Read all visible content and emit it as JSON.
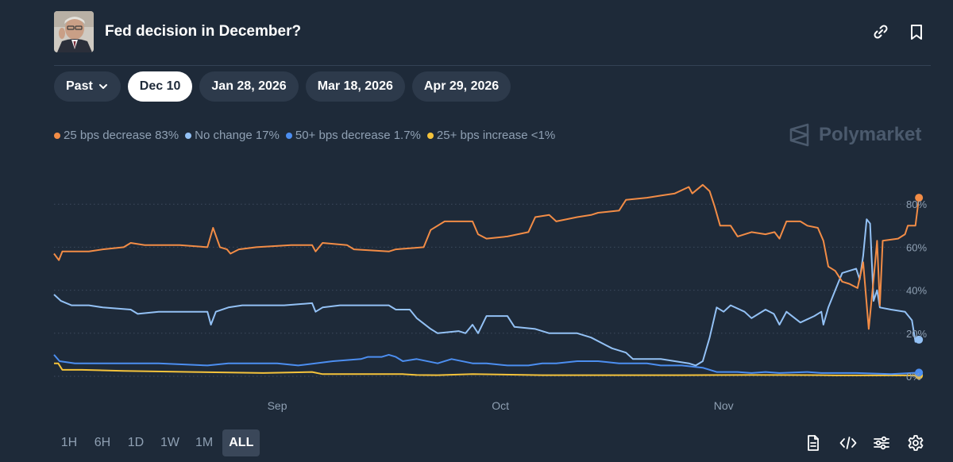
{
  "header": {
    "title": "Fed decision in December?"
  },
  "date_pills": [
    {
      "label": "Past",
      "active": false,
      "dropdown": true
    },
    {
      "label": "Dec 10",
      "active": true
    },
    {
      "label": "Jan 28, 2026",
      "active": false
    },
    {
      "label": "Mar 18, 2026",
      "active": false
    },
    {
      "label": "Apr 29, 2026",
      "active": false
    }
  ],
  "brand": "Polymarket",
  "time_ranges": [
    {
      "label": "1H",
      "active": false
    },
    {
      "label": "6H",
      "active": false
    },
    {
      "label": "1D",
      "active": false
    },
    {
      "label": "1W",
      "active": false
    },
    {
      "label": "1M",
      "active": false
    },
    {
      "label": "ALL",
      "active": true
    }
  ],
  "chart_data": {
    "type": "line",
    "title": "",
    "xlabel": "",
    "ylabel": "",
    "ylim": [
      0,
      100
    ],
    "xlim": [
      0,
      120
    ],
    "x_ticks": [
      {
        "label": "Sep",
        "x": 32
      },
      {
        "label": "Oct",
        "x": 64
      },
      {
        "label": "Nov",
        "x": 96
      }
    ],
    "y_ticks": [
      {
        "value": 0,
        "label": "0%"
      },
      {
        "value": 20,
        "label": "20%"
      },
      {
        "value": 40,
        "label": "40%"
      },
      {
        "value": 60,
        "label": "60%"
      },
      {
        "value": 80,
        "label": "80%"
      }
    ],
    "grid": true,
    "legend_position": "top-left",
    "series": [
      {
        "name": "25 bps decrease",
        "legend": "25 bps decrease 83%",
        "color": "#f28c46",
        "points": [
          [
            0,
            57
          ],
          [
            0.7,
            54
          ],
          [
            1.2,
            58
          ],
          [
            5,
            58
          ],
          [
            7,
            59
          ],
          [
            10,
            60
          ],
          [
            11,
            62
          ],
          [
            13,
            61
          ],
          [
            18,
            61
          ],
          [
            22,
            60
          ],
          [
            22.8,
            69
          ],
          [
            23.8,
            60
          ],
          [
            24.8,
            59
          ],
          [
            25.3,
            57
          ],
          [
            26.5,
            59
          ],
          [
            29,
            60
          ],
          [
            34,
            61
          ],
          [
            37,
            61
          ],
          [
            37.5,
            58
          ],
          [
            38.5,
            62
          ],
          [
            42,
            61
          ],
          [
            43,
            59
          ],
          [
            48,
            58
          ],
          [
            49,
            59
          ],
          [
            53,
            60
          ],
          [
            54,
            68
          ],
          [
            56,
            72
          ],
          [
            58,
            72
          ],
          [
            60,
            72
          ],
          [
            60.8,
            66
          ],
          [
            62,
            64
          ],
          [
            65,
            65
          ],
          [
            68,
            67
          ],
          [
            69,
            74
          ],
          [
            71,
            75
          ],
          [
            72,
            72
          ],
          [
            75,
            74
          ],
          [
            77,
            75
          ],
          [
            78,
            76
          ],
          [
            81,
            77
          ],
          [
            82,
            82
          ],
          [
            85,
            83
          ],
          [
            87,
            84
          ],
          [
            89,
            85
          ],
          [
            91,
            88
          ],
          [
            91.5,
            85
          ],
          [
            93,
            89
          ],
          [
            94,
            86
          ],
          [
            94.7,
            79
          ],
          [
            95.5,
            70
          ],
          [
            97,
            70
          ],
          [
            98,
            65
          ],
          [
            100,
            67
          ],
          [
            102,
            66
          ],
          [
            103.3,
            67
          ],
          [
            104,
            64
          ],
          [
            105,
            72
          ],
          [
            107,
            72
          ],
          [
            108,
            70
          ],
          [
            109.5,
            69
          ],
          [
            110.3,
            63
          ],
          [
            111,
            51
          ],
          [
            112,
            49
          ],
          [
            113,
            44
          ],
          [
            114,
            43
          ],
          [
            115.2,
            41
          ],
          [
            116,
            53
          ],
          [
            116.8,
            22
          ],
          [
            117.5,
            45
          ],
          [
            118,
            63
          ],
          [
            118.4,
            33
          ],
          [
            118.8,
            63
          ],
          [
            121,
            64
          ],
          [
            122,
            66
          ],
          [
            122.4,
            70
          ],
          [
            123.5,
            70
          ],
          [
            124,
            83
          ]
        ]
      },
      {
        "name": "No change",
        "legend": "No change 17%",
        "color": "#93c1f5",
        "points": [
          [
            0,
            38
          ],
          [
            1,
            35
          ],
          [
            2.5,
            33
          ],
          [
            5,
            33
          ],
          [
            7,
            32
          ],
          [
            11,
            31
          ],
          [
            12,
            29
          ],
          [
            15,
            30
          ],
          [
            22,
            30
          ],
          [
            22.5,
            24
          ],
          [
            23.2,
            30
          ],
          [
            25,
            32
          ],
          [
            27,
            33
          ],
          [
            33,
            33
          ],
          [
            37,
            34
          ],
          [
            37.5,
            30
          ],
          [
            38.5,
            32
          ],
          [
            41,
            33
          ],
          [
            48,
            33
          ],
          [
            49,
            31
          ],
          [
            51,
            31
          ],
          [
            52,
            27
          ],
          [
            54,
            22
          ],
          [
            55,
            20
          ],
          [
            58,
            21
          ],
          [
            59,
            20
          ],
          [
            60,
            24
          ],
          [
            60.8,
            20
          ],
          [
            62,
            28
          ],
          [
            65,
            28
          ],
          [
            66,
            23
          ],
          [
            69,
            22
          ],
          [
            71,
            20
          ],
          [
            75,
            20
          ],
          [
            77,
            18
          ],
          [
            80,
            13
          ],
          [
            82,
            11
          ],
          [
            83,
            8
          ],
          [
            85,
            8
          ],
          [
            87,
            8
          ],
          [
            89,
            7
          ],
          [
            91,
            6
          ],
          [
            92,
            5
          ],
          [
            93,
            7
          ],
          [
            94,
            18
          ],
          [
            95,
            32
          ],
          [
            96,
            30
          ],
          [
            97,
            33
          ],
          [
            99,
            30
          ],
          [
            100,
            27
          ],
          [
            101,
            29
          ],
          [
            102,
            31
          ],
          [
            103.2,
            29
          ],
          [
            104,
            24
          ],
          [
            105,
            30
          ],
          [
            107,
            25
          ],
          [
            109,
            28
          ],
          [
            110,
            30
          ],
          [
            110.3,
            24
          ],
          [
            111,
            32
          ],
          [
            112,
            40
          ],
          [
            113,
            48
          ],
          [
            114,
            49
          ],
          [
            115,
            50
          ],
          [
            115.5,
            45
          ],
          [
            116,
            56
          ],
          [
            116.5,
            73
          ],
          [
            117,
            71
          ],
          [
            117.5,
            35
          ],
          [
            118,
            40
          ],
          [
            118.4,
            32
          ],
          [
            120,
            31
          ],
          [
            122,
            30
          ],
          [
            123,
            26
          ],
          [
            123.5,
            16
          ],
          [
            124,
            17
          ]
        ]
      },
      {
        "name": "50+ bps decrease",
        "legend": "50+ bps decrease 1.7%",
        "color": "#4c8ef0",
        "points": [
          [
            0,
            10
          ],
          [
            0.8,
            7
          ],
          [
            3,
            6
          ],
          [
            10,
            6
          ],
          [
            15,
            6
          ],
          [
            22,
            5
          ],
          [
            25,
            6
          ],
          [
            30,
            6
          ],
          [
            32,
            6
          ],
          [
            35,
            5
          ],
          [
            40,
            7
          ],
          [
            44,
            8
          ],
          [
            45,
            9
          ],
          [
            47,
            9
          ],
          [
            48,
            10
          ],
          [
            49,
            9
          ],
          [
            50,
            7
          ],
          [
            52,
            8
          ],
          [
            55,
            6
          ],
          [
            57,
            8
          ],
          [
            60,
            6
          ],
          [
            62,
            6
          ],
          [
            65,
            5
          ],
          [
            68,
            5
          ],
          [
            70,
            6
          ],
          [
            72,
            6
          ],
          [
            75,
            7
          ],
          [
            78,
            7
          ],
          [
            81,
            6
          ],
          [
            85,
            6
          ],
          [
            87,
            5
          ],
          [
            90,
            5
          ],
          [
            93,
            4
          ],
          [
            95,
            2
          ],
          [
            98,
            2
          ],
          [
            100,
            1.5
          ],
          [
            102,
            2
          ],
          [
            104,
            1.5
          ],
          [
            108,
            2
          ],
          [
            110,
            1.5
          ],
          [
            115,
            1.5
          ],
          [
            120,
            1
          ],
          [
            124,
            1.7
          ]
        ]
      },
      {
        "name": "25+ bps increase",
        "legend": "25+ bps increase <1%",
        "color": "#f5c33b",
        "points": [
          [
            0,
            6
          ],
          [
            0.6,
            6
          ],
          [
            1.2,
            3
          ],
          [
            4,
            3
          ],
          [
            10,
            2.5
          ],
          [
            20,
            2
          ],
          [
            30,
            1.5
          ],
          [
            37,
            2
          ],
          [
            38.5,
            1
          ],
          [
            45,
            1
          ],
          [
            50,
            1
          ],
          [
            52,
            0.6
          ],
          [
            55,
            0.5
          ],
          [
            60,
            1
          ],
          [
            70,
            0.5
          ],
          [
            80,
            0.5
          ],
          [
            90,
            0.5
          ],
          [
            100,
            0.6
          ],
          [
            110,
            0.5
          ],
          [
            112,
            0.4
          ],
          [
            124,
            0.4
          ]
        ]
      }
    ]
  }
}
